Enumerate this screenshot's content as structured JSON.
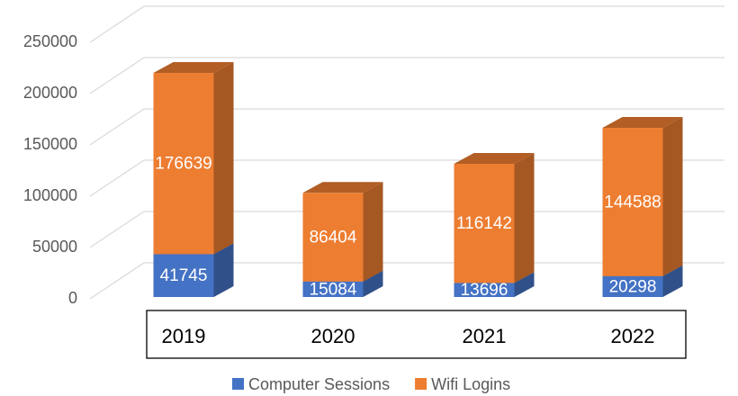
{
  "chart_data": {
    "type": "bar",
    "stacked": true,
    "categories": [
      "2019",
      "2020",
      "2021",
      "2022"
    ],
    "series": [
      {
        "name": "Computer Sessions",
        "color": "#4472c4",
        "values": [
          41745,
          15084,
          13696,
          20298
        ]
      },
      {
        "name": "Wifi Logins",
        "color": "#ed7d31",
        "values": [
          176639,
          86404,
          116142,
          144588
        ]
      }
    ],
    "ylim": [
      0,
      250000
    ],
    "yticks": [
      0,
      50000,
      100000,
      150000,
      200000,
      250000
    ],
    "grid": true,
    "legend": "bottom"
  }
}
